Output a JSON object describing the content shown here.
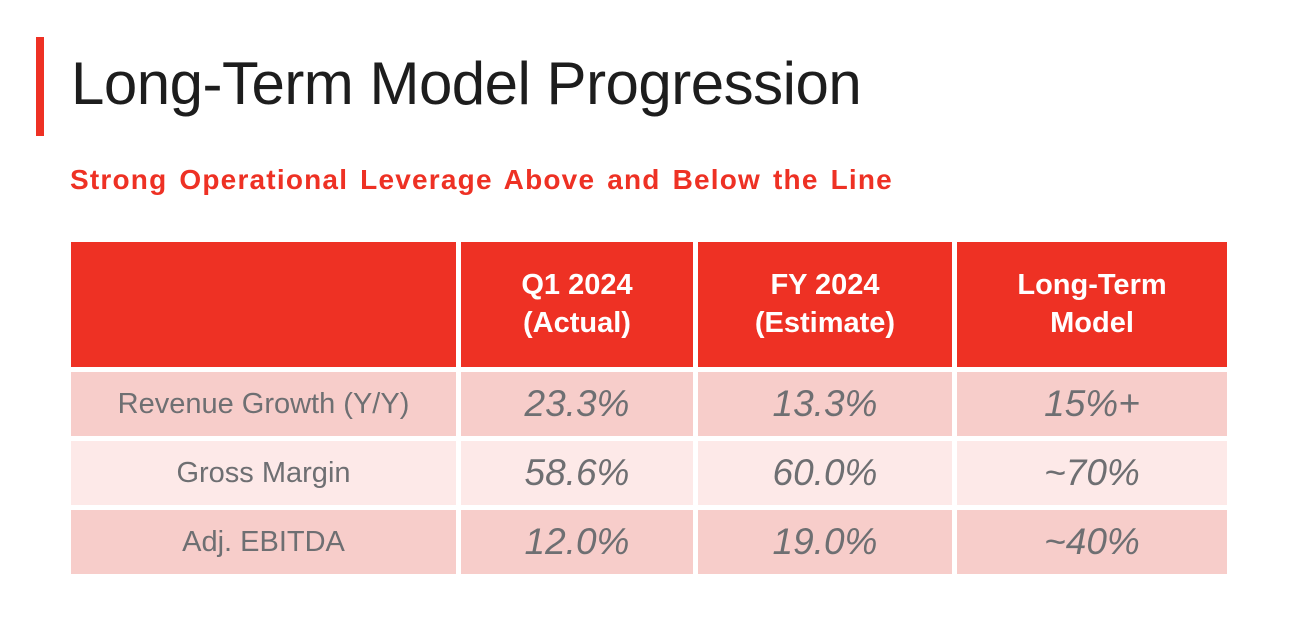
{
  "slide": {
    "title": "Long-Term Model Progression",
    "subtitle": "Strong Operational Leverage Above and Below the Line"
  },
  "colors": {
    "accent_red": "#EE3124",
    "header_text_white": "#FFFFFF",
    "row_pink_dark": "#F7CDCA",
    "row_pink_light": "#FDE9E8",
    "body_text_gray": "#6E6F72",
    "title_text": "#1D1D1D"
  },
  "table": {
    "headers": [
      "",
      "Q1 2024\n(Actual)",
      "FY 2024\n(Estimate)",
      "Long-Term\nModel"
    ],
    "rows": [
      {
        "label": "Revenue Growth (Y/Y)",
        "values": [
          "23.3%",
          "13.3%",
          "15%+"
        ]
      },
      {
        "label": "Gross Margin",
        "values": [
          "58.6%",
          "60.0%",
          "~70%"
        ]
      },
      {
        "label": "Adj. EBITDA",
        "values": [
          "12.0%",
          "19.0%",
          "~40%"
        ]
      }
    ]
  }
}
